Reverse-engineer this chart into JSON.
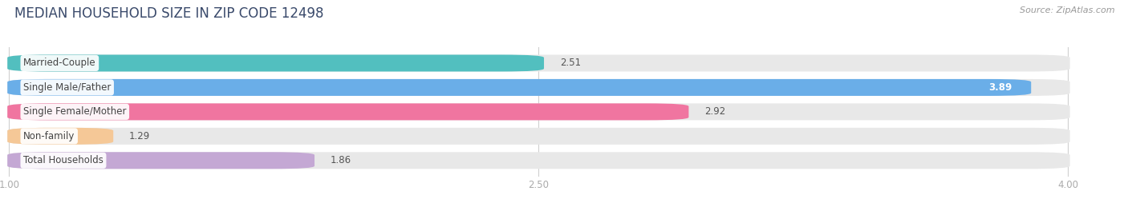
{
  "title": "MEDIAN HOUSEHOLD SIZE IN ZIP CODE 12498",
  "source": "Source: ZipAtlas.com",
  "categories": [
    "Married-Couple",
    "Single Male/Father",
    "Single Female/Mother",
    "Non-family",
    "Total Households"
  ],
  "values": [
    2.51,
    3.89,
    2.92,
    1.29,
    1.86
  ],
  "bar_colors": [
    "#52bfbf",
    "#6aaee8",
    "#f075a0",
    "#f5c897",
    "#c4a8d4"
  ],
  "bar_bg_color": "#e8e8e8",
  "xlim_data": [
    1.0,
    4.0
  ],
  "xticks": [
    1.0,
    2.5,
    4.0
  ],
  "xtick_labels": [
    "1.00",
    "2.50",
    "4.00"
  ],
  "title_fontsize": 12,
  "label_fontsize": 8.5,
  "value_fontsize": 8.5,
  "source_fontsize": 8,
  "background_color": "#ffffff",
  "bar_height": 0.68,
  "title_color": "#3a4a6b",
  "label_text_color": "#444444",
  "value_text_color": "#555555",
  "tick_color": "#aaaaaa",
  "grid_color": "#d0d0d0"
}
